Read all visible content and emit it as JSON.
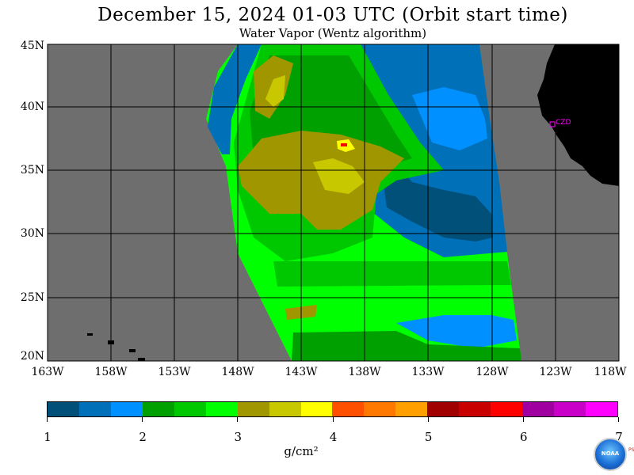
{
  "title": "December 15, 2024  01-03 UTC  (Orbit start time)",
  "subtitle": "Water Vapor (Wentz algorithm)",
  "map": {
    "lat_labels": [
      "45N",
      "40N",
      "35N",
      "30N",
      "25N",
      "20N"
    ],
    "lon_labels": [
      "163W",
      "158W",
      "153W",
      "148W",
      "143W",
      "138W",
      "133W",
      "128W",
      "123W",
      "118W"
    ],
    "station_label": "CZD",
    "colors": {
      "no_data": "#6e6e6e",
      "land": "#000000",
      "grid": "#000000",
      "station": "#ff00ff"
    }
  },
  "colorbar": {
    "colors": [
      "#00507a",
      "#0070b8",
      "#0090ff",
      "#00a000",
      "#00c800",
      "#00ff00",
      "#a09600",
      "#c8c800",
      "#ffff00",
      "#ff5000",
      "#ff7800",
      "#ffa000",
      "#a00000",
      "#c80000",
      "#ff0000",
      "#a000a0",
      "#c800c8",
      "#ff00ff"
    ],
    "labels": [
      "1",
      "2",
      "3",
      "4",
      "5",
      "6",
      "7"
    ],
    "units": "g/cm²"
  },
  "logo": {
    "text": "NOAA",
    "side_text": "PSL"
  }
}
